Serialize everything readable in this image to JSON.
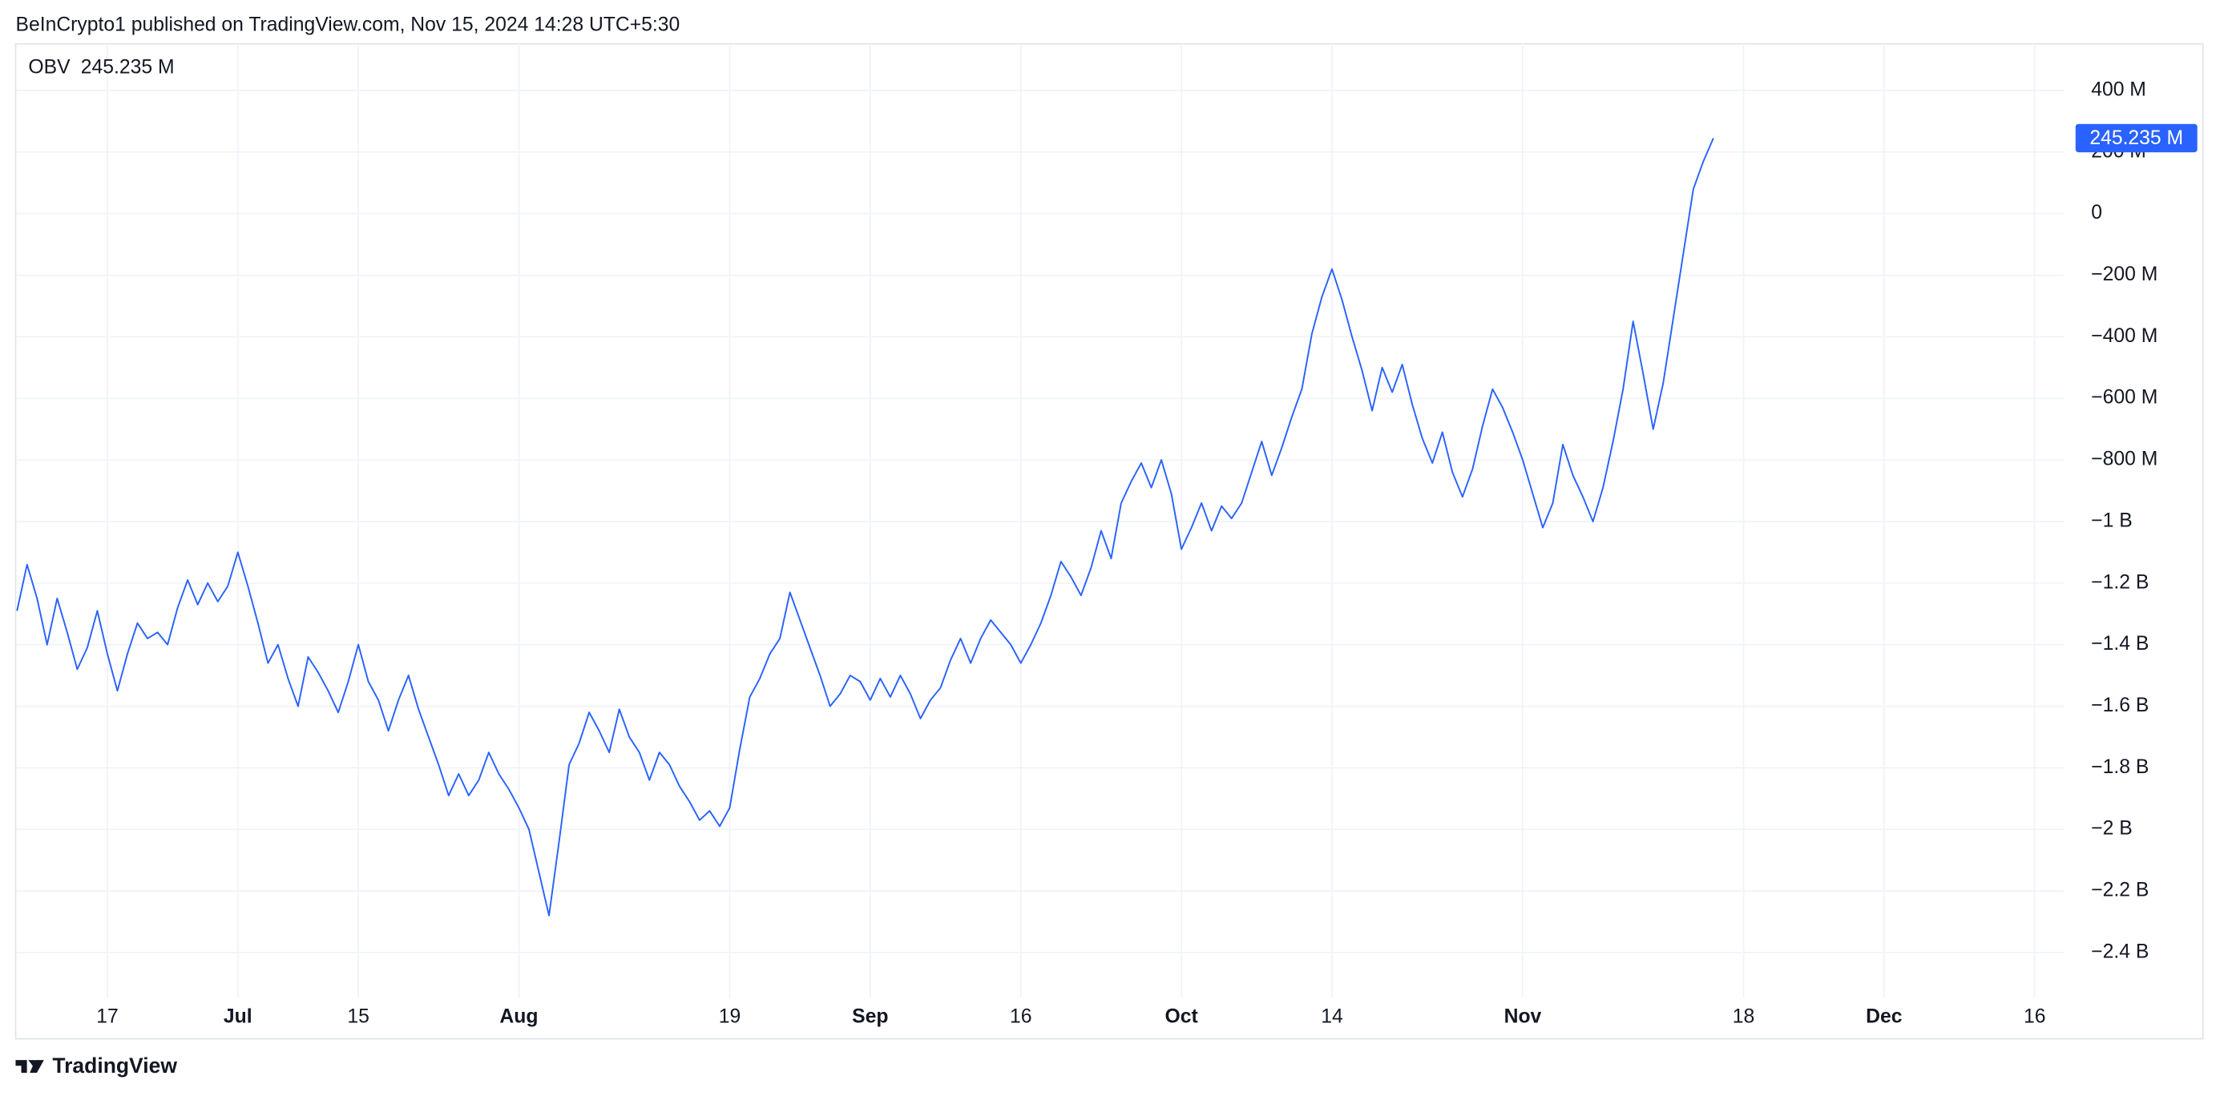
{
  "header": "BeInCrypto1 published on TradingView.com, Nov 15, 2024 14:28 UTC+5:30",
  "footer": "TradingView",
  "chart_data": {
    "type": "line",
    "grid": true,
    "categories": [
      null,
      null,
      null,
      null,
      null,
      null,
      null,
      null,
      null,
      "17",
      null,
      null,
      null,
      null,
      null,
      null,
      null,
      null,
      null,
      null,
      null,
      null,
      "Jul",
      null,
      null,
      null,
      null,
      null,
      null,
      null,
      null,
      null,
      null,
      null,
      "15",
      null,
      null,
      null,
      null,
      null,
      null,
      null,
      null,
      null,
      null,
      null,
      null,
      null,
      null,
      null,
      "Aug",
      null,
      null,
      null,
      null,
      null,
      null,
      null,
      null,
      null,
      null,
      null,
      null,
      null,
      null,
      null,
      null,
      null,
      null,
      null,
      null,
      "19",
      null,
      null,
      null,
      null,
      null,
      null,
      null,
      null,
      null,
      null,
      null,
      null,
      null,
      "Sep",
      null,
      null,
      null,
      null,
      null,
      null,
      null,
      null,
      null,
      null,
      null,
      null,
      null,
      null,
      "16",
      null,
      null,
      null,
      null,
      null,
      null,
      null,
      null,
      null,
      null,
      null,
      null,
      null,
      null,
      null,
      "Oct",
      null,
      null,
      null,
      null,
      null,
      null,
      null,
      null,
      null,
      null,
      null,
      null,
      null,
      null,
      "14",
      null,
      null,
      null,
      null,
      null,
      null,
      null,
      null,
      null,
      null,
      null,
      null,
      null,
      null,
      null,
      null,
      null,
      null,
      "Nov",
      null,
      null,
      null,
      null,
      null,
      null,
      null,
      null,
      null,
      null,
      null,
      null,
      null,
      null,
      null,
      null,
      null,
      null,
      null,
      null,
      null,
      "18",
      null,
      null,
      null,
      null,
      null,
      null,
      null,
      null,
      null,
      null,
      null,
      null,
      null,
      "Dec",
      null,
      null,
      null,
      null,
      null,
      null,
      null,
      null,
      null,
      null,
      null,
      null,
      null,
      null,
      "16"
    ],
    "series": [
      {
        "name": "OBV",
        "color": "#2962ff",
        "last_value_label": "245.235 M",
        "values": [
          -1290,
          -1140,
          -1250,
          -1400,
          -1250,
          -1360,
          -1480,
          -1410,
          -1290,
          -1430,
          -1550,
          -1430,
          -1330,
          -1380,
          -1360,
          -1400,
          -1280,
          -1190,
          -1270,
          -1200,
          -1260,
          -1210,
          -1100,
          -1210,
          -1330,
          -1460,
          -1400,
          -1510,
          -1600,
          -1440,
          -1490,
          -1550,
          -1620,
          -1520,
          -1400,
          -1520,
          -1580,
          -1680,
          -1580,
          -1500,
          -1610,
          -1700,
          -1790,
          -1890,
          -1820,
          -1890,
          -1840,
          -1750,
          -1820,
          -1870,
          -1930,
          -2000,
          -2140,
          -2280,
          -2040,
          -1790,
          -1720,
          -1620,
          -1680,
          -1750,
          -1610,
          -1700,
          -1750,
          -1840,
          -1750,
          -1790,
          -1860,
          -1910,
          -1970,
          -1940,
          -1990,
          -1930,
          -1740,
          -1570,
          -1510,
          -1430,
          -1380,
          -1230,
          -1320,
          -1410,
          -1500,
          -1600,
          -1560,
          -1500,
          -1520,
          -1580,
          -1510,
          -1570,
          -1500,
          -1560,
          -1640,
          -1580,
          -1540,
          -1450,
          -1380,
          -1460,
          -1380,
          -1320,
          -1360,
          -1400,
          -1460,
          -1400,
          -1330,
          -1240,
          -1130,
          -1180,
          -1240,
          -1150,
          -1030,
          -1120,
          -940,
          -870,
          -810,
          -890,
          -800,
          -910,
          -1090,
          -1020,
          -940,
          -1030,
          -950,
          -990,
          -940,
          -840,
          -740,
          -850,
          -760,
          -660,
          -570,
          -390,
          -270,
          -180,
          -280,
          -400,
          -510,
          -640,
          -500,
          -580,
          -490,
          -620,
          -730,
          -810,
          -710,
          -840,
          -920,
          -830,
          -690,
          -570,
          -630,
          -710,
          -800,
          -910,
          -1020,
          -940,
          -750,
          -850,
          -920,
          -1000,
          -890,
          -740,
          -570,
          -350,
          -520,
          -700,
          -550,
          -340,
          -130,
          80,
          170,
          245.235,
          null,
          null,
          null,
          null,
          null,
          null,
          null,
          null,
          null,
          null,
          null,
          null,
          null,
          null,
          null,
          null,
          null,
          null,
          null,
          null,
          null,
          null,
          null,
          null,
          null,
          null,
          null,
          null,
          null,
          null,
          null,
          null
        ]
      }
    ],
    "ylim": [
      -2547,
      556
    ],
    "yticks": [
      {
        "value": 400,
        "label": "400 M"
      },
      {
        "value": 200,
        "label": "200 M"
      },
      0,
      {
        "value": -200,
        "label": "−200 M"
      },
      {
        "value": -400,
        "label": "−400 M"
      },
      {
        "value": -600,
        "label": "−600 M"
      },
      {
        "value": -800,
        "label": "−800 M"
      },
      {
        "value": -1000,
        "label": "−1 B"
      },
      {
        "value": -1200,
        "label": "−1.2 B"
      },
      {
        "value": -1400,
        "label": "−1.4 B"
      },
      {
        "value": -1600,
        "label": "−1.6 B"
      },
      {
        "value": -1800,
        "label": "−1.8 B"
      },
      {
        "value": -2000,
        "label": "−2 B"
      },
      {
        "value": -2200,
        "label": "−2.2 B"
      },
      {
        "value": -2400,
        "label": "−2.4 B"
      }
    ]
  }
}
